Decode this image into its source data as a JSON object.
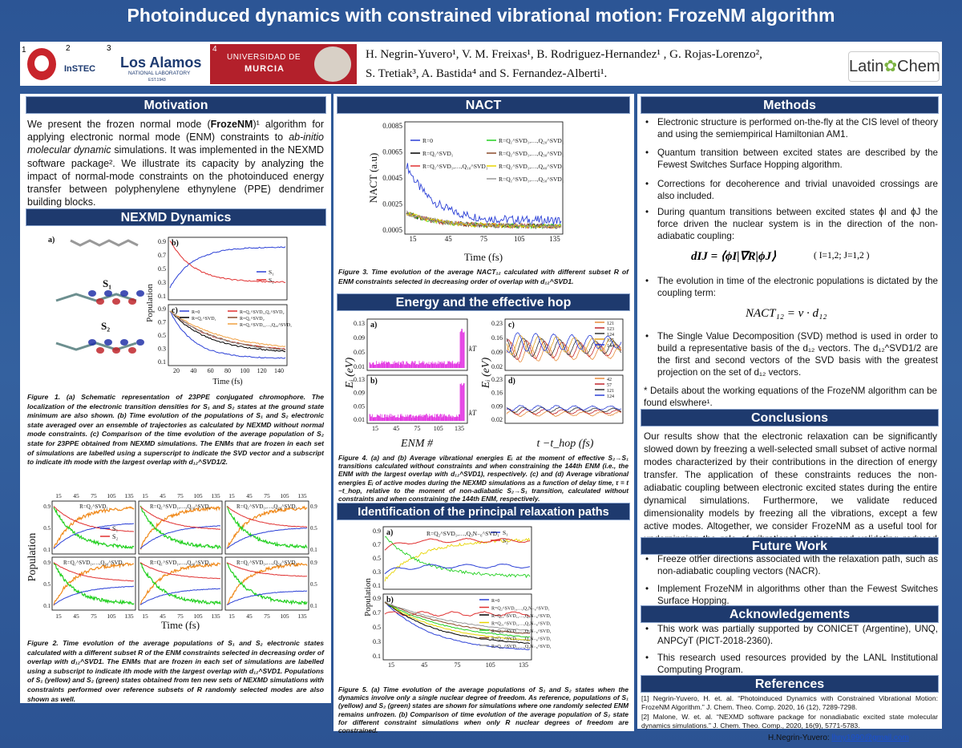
{
  "header": {
    "title": "Photoinduced dynamics with constrained vibrational motion: FrozeNM algorithm",
    "authors_line1": "H. Negrin-Yuvero¹, V. M. Freixas¹, B. Rodriguez-Hernandez¹ , G. Rojas-Lorenzo²,",
    "authors_line2": "S. Tretiak³, A. Bastida⁴ and S. Fernandez-Alberti¹.",
    "logos": {
      "unq_num": "1",
      "instec_num": "2",
      "instec": "InSTEC",
      "lanl_num": "3",
      "lanl": "Los Alamos",
      "lanl_sub": "NATIONAL LABORATORY",
      "lanl_est": "EST.1943",
      "murcia_num": "4",
      "murcia_1": "UNIVERSIDAD DE",
      "murcia_2": "MURCIA",
      "latinchem_1": "Latin",
      "latinchem_2": "Chem"
    }
  },
  "motivation": {
    "title": "Motivation",
    "text": [
      "We present the frozen normal mode (",
      "FrozeNM",
      ")¹ algorithm for applying electronic normal mode (ENM) constraints to ",
      "ab-initio molecular dynamic",
      " simulations. It was implemented in the NEXMD software package². We illustrate its capacity by analyzing the impact of normal-mode constraints on the photoinduced energy transfer between polyphenylene ethynylene (PPE) dendrimer building blocks."
    ]
  },
  "nexmd": {
    "title": "NEXMD Dynamics",
    "figure1": {
      "a": {
        "label": "a)",
        "s1": "S₁",
        "s2": "S₂"
      },
      "b": {
        "label": "b)",
        "yticks": [
          "0.9",
          "0.7",
          "0.5",
          "0.3",
          "0.1"
        ],
        "legend": [
          "S₁",
          "S₂"
        ]
      },
      "c": {
        "label": "c)",
        "yticks": [
          "0.9",
          "0.7",
          "0.5",
          "0.3",
          "0.1"
        ],
        "xticks": [
          "20",
          "40",
          "60",
          "80",
          "100",
          "120",
          "140"
        ],
        "legend": [
          "R=0",
          "R=Q₁^SVD₁",
          "R=Q₁^SVD₁,Q₁^SVD₂",
          "R=Q₁^SVD₂",
          "R=Q₁^SVD₁,…,Q₂₀^SVD₁"
        ]
      },
      "ylabel": "Population",
      "xlabel": "Time (fs)"
    },
    "caption1": "Figure 1. (a) Schematic representation of 23PPE conjugated chromophore. The localization of the electronic transition densities for S₁ and S₂ states at the ground state minimum are also shown. (b) Time evolution of the populations of S₁ and S₂ electronic state averaged over an ensemble of trajectories as calculated by NEXMD without normal mode constraints. (c) Comparison of the time evolution of the average population of S₂ state for 23PPE obtained from NEXMD simulations. The ENMs that are frozen in each set of simulations are labelled using a superscript to indicate the SVD vector and a subscript to indicate ith mode with the largest overlap with d₁₂^SVD1/2.",
    "figure2": {
      "panels": [
        "R=Q₁^SVD₁",
        "R=Q₁^SVD₁,…,Q₁₀^SVD₁",
        "R=Q₁^SVD₁,…,Q₂₀^SVD₁",
        "R=Q₁^SVD₁,…,Q₃₀^SVD₁",
        "R=Q₁^SVD₁,…,Q₄₀^SVD₁",
        "R=Q₁^SVD₁,…,Q₅₀^SVD₁"
      ],
      "legend": [
        "S₁",
        "S₂"
      ],
      "xticks": [
        "15",
        "45",
        "75",
        "105",
        "135"
      ],
      "yticks": [
        "0.9",
        "0.5",
        "0.1"
      ],
      "ylabel": "Population",
      "xlabel": "Time (fs)"
    },
    "caption2": "Figure 2. Time evolution of the average populations of S₁ and S₂ electronic states calculated with a different subset R of the ENM constraints selected in decreasing order of overlap with d₁₂^SVD1. The ENMs that are frozen in each set of simulations are labelled using a subscript to indicate ith mode with the largest overlap with d₁₂^SVD1. Populations of S₁ (yellow) and S₂ (green) states obtained from ten new sets of NEXMD simulations with constraints performed over reference subsets of R randomly selected modes are also shown as well."
  },
  "nact": {
    "title": "NACT",
    "figure3": {
      "yticks": [
        "0.0085",
        "0.0065",
        "0.0045",
        "0.0025",
        "0.0005"
      ],
      "xticks": [
        "15",
        "45",
        "75",
        "105",
        "135"
      ],
      "legend": [
        "R=0",
        "R=Q₁^SVD₁",
        "R=Q₁^SVD₁,…,Q₁₀^SVD₁",
        "R=Q₁^SVD₁,…,Q₂₀^SVD₁",
        "R=Q₁^SVD₁,…,Q₃₀^SVD₁",
        "R=Q₁^SVD₁,…,Q₄₀^SVD₁",
        "R=Q₁^SVD₁,…,Q₅₀^SVD₁"
      ],
      "ylabel": "NACT (a.u)",
      "xlabel": "Time (fs)"
    },
    "caption3": "Figure 3. Time evolution of the average NACT₁₂ calculated with different subset R of ENM constraints selected in decreasing order of overlap with d₁₂^SVD1."
  },
  "energy": {
    "title": "Energy and the effective hop",
    "figure4": {
      "a": {
        "label": "a)",
        "yticks": [
          "0.13",
          "0.09",
          "0.05",
          "0.01"
        ],
        "kt": "kT"
      },
      "b": {
        "label": "b)",
        "yticks": [
          "0.13",
          "0.09",
          "0.05",
          "0.01"
        ],
        "xticks": [
          "15",
          "45",
          "75",
          "105",
          "135"
        ],
        "kt": "kT"
      },
      "c": {
        "label": "c)",
        "yticks": [
          "0.23",
          "0.16",
          "0.09",
          "0.02"
        ],
        "legend": [
          "121",
          "123",
          "124",
          "125",
          "144"
        ]
      },
      "d": {
        "label": "d)",
        "yticks": [
          "0.23",
          "0.16",
          "0.09",
          "0.02"
        ],
        "legend": [
          "42",
          "57",
          "121",
          "124"
        ]
      },
      "ylabel": "Eᵢ (eV)",
      "xlabel_left": "ENM #",
      "xlabel_right": "t −t_hop (fs)"
    },
    "caption4": "Figure 4. (a) and (b) Average vibrational energies Eᵢ at the moment of effective S₂→S₁ transitions calculated without constraints and when constraining the 144th ENM (i.e., the ENM with the largest overlap with d₁₂^SVD1), respectively. (c) and (d) Average vibrational energies Eᵢ of active modes during the NEXMD simulations as a function of delay time, τ = t −t_hop, relative to the moment of non-adiabatic S₂→S₁ transition, calculated without constraints and when constraining the 144th ENM, respectively."
  },
  "paths": {
    "title": "Identification of the principal relaxation paths",
    "figure5": {
      "a": {
        "label": "a)",
        "tag": "R=Q₂^SVD₁,…,Q₃N₋₆^SVD₁",
        "yticks": [
          "0.9",
          "0.7",
          "0.5",
          "0.3",
          "0.1"
        ],
        "legend": [
          "S₁",
          "S₂"
        ]
      },
      "b": {
        "label": "b)",
        "yticks": [
          "0.9",
          "0.7",
          "0.5",
          "0.3",
          "0.1"
        ],
        "xticks": [
          "15",
          "45",
          "75",
          "105",
          "135"
        ],
        "legend": [
          "R=0",
          "R=Q₂^SVD₁,…,Q₃N₋₆^SVD₁",
          "R=Q₁₁^SVD₁,…,Q₃N₋₆^SVD₁",
          "R=Q₂₁^SVD₁,…,Q₃N₋₆^SVD₁",
          "R=Q₃₁^SVD₁,…,Q₃N₋₆^SVD₁",
          "R=Q₄₁^SVD₁,…,Q₃N₋₆^SVD₁",
          "R=Q₅₁^SVD₁,…,Q₃N₋₆^SVD₁"
        ]
      },
      "ylabel": "Population"
    },
    "caption5": "Figure 5. (a) Time evolution of the average populations of S₁ and S₂ states when the dynamics involve only a single nuclear degree of freedom. As reference, populations of S₁ (yellow) and S₂ (green) states are shown for simulations where one randomly selected ENM remains unfrozen. (b) Comparison of time evolution of the average population of S₂ state for different constraint simulations when only R nuclear degrees of freedom are constrained."
  },
  "methods": {
    "title": "Methods",
    "bullets": [
      "Electronic structure is performed on-the-fly at the CIS level of theory and using the semiempirical Hamiltonian AM1.",
      "Quantum transition between excited states are described by the Fewest Switches Surface Hopping algorithm.",
      "Corrections for decoherence and trivial unavoided crossings are also included.",
      "During quantum transitions between excited states ϕI and ϕJ the force driven the nuclear system is in the direction of the non-adiabatic coupling:",
      "The evolution in time of the electronic populations is dictated by the coupling term:",
      "The Single Value Decomposition (SVD) method is used in order to build a representative basis of the d₁₂ vectors. The d₁₂^SVD1/2 are the first and second vectors of the SVD basis with the greatest projection on the set of d₁₂ vectors."
    ],
    "eq1": "dIJ = ⟨ϕI|∇R|ϕJ⟩",
    "eq1_note": "( I=1,2;  J=1,2 )",
    "eq2": "NACT₁₂ = v · d₁₂",
    "note": "* Details about the working equations of the FrozeNM algorithm can be found elswhere¹."
  },
  "conclusions": {
    "title": "Conclusions",
    "text": "Our results show that the electronic relaxation can be significantly slowed down by freezing a well-selected small subset of active normal modes characterized by their contributions in the direction of energy transfer. The application of these constraints reduces the non-adiabatic coupling between electronic excited states during the entire dynamical simulations. Furthermore, we validate reduced dimensionality models by freezing all the vibrations, except a few active modes. Altogether, we consider FrozeNM as a useful tool for underpinning the role of vibrational motions and validating reduced dimensionality models."
  },
  "future_work": {
    "title": "Future Work",
    "bullets": [
      "Freeze other directions associated with the relaxation path, such as non-adiabatic coupling vectors (NACR).",
      "Implement FrozeNM in algorithms other than the Fewest Switches Surface Hopping."
    ]
  },
  "acknowledgements": {
    "title": "Acknowledgements",
    "bullets": [
      "This work was partially supported by CONICET (Argentine), UNQ, ANPCyT (PICT-2018-2360).",
      "This research used resources provided by the LANL Institutional Computing Program."
    ]
  },
  "references": {
    "title": "References",
    "items": [
      "[1] Negrin-Yuvero, H. et. al. “Photoinduced Dynamics with Constrained Vibrational Motion: FrozeNM Algorithm.” J. Chem. Theo. Comp. 2020, 16 (12), 7289-7298.",
      "[2] Malone, W. et. al. “NEXMD software package for nonadiabatic excited state molecular dynamics simulations.” J. Chem. Theo. Comp., 2020, 16(9), 5771-5783."
    ]
  },
  "contact": {
    "name": "H.Negrin-Yuvero: ",
    "email": "lhny1990@gmail.com"
  }
}
